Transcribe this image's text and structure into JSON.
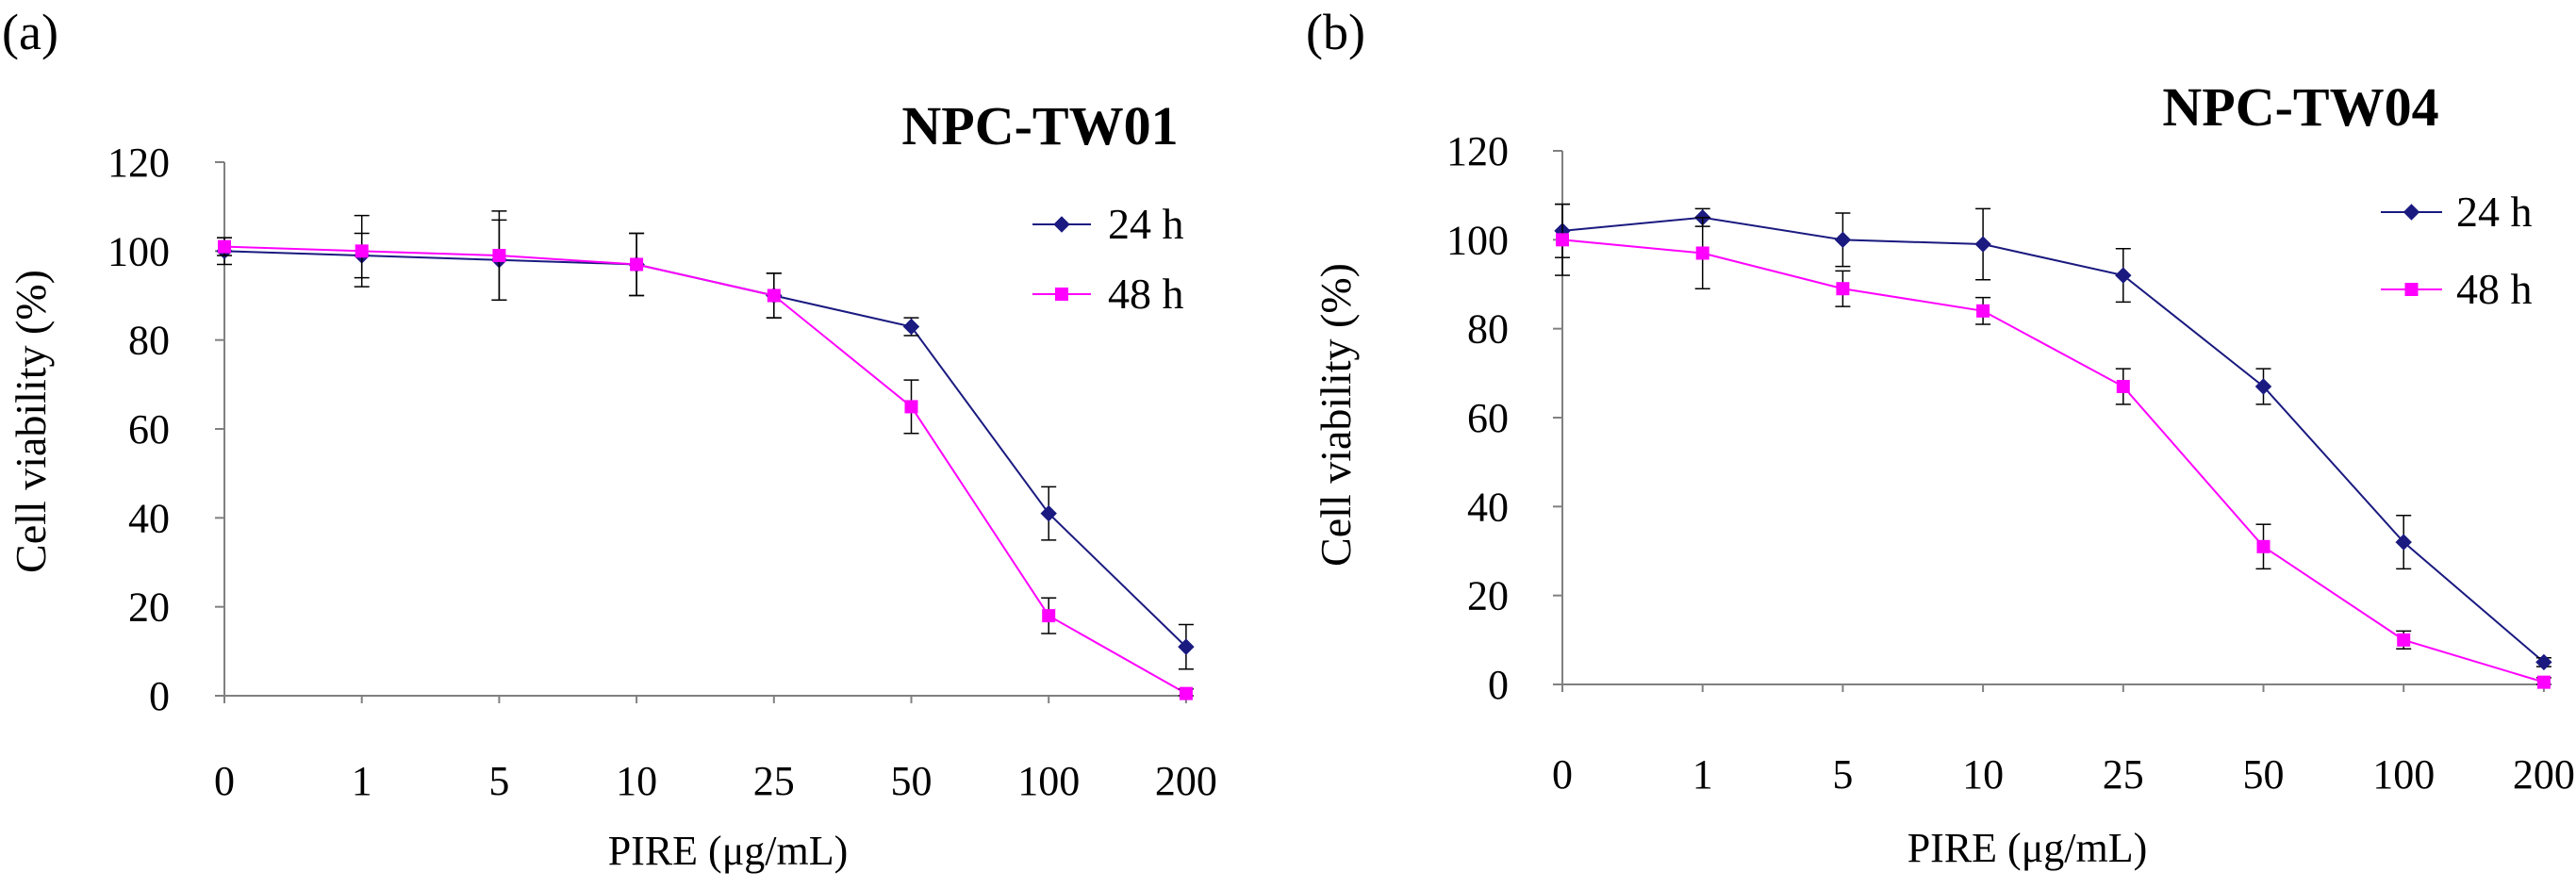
{
  "colors": {
    "series_24h": "#1a1a80",
    "series_48h": "#ff00ff",
    "axis": "#808080",
    "error_bar": "#000000"
  },
  "chart_data": [
    {
      "panel_label": "(a)",
      "type": "line",
      "title": "NPC-TW01",
      "xlabel": "PIRE (μg/mL)",
      "ylabel": "Cell viability (%)",
      "categories": [
        "0",
        "1",
        "5",
        "10",
        "25",
        "50",
        "100",
        "200"
      ],
      "ylim": [
        0,
        120
      ],
      "yticks": [
        0,
        20,
        40,
        60,
        80,
        100,
        120
      ],
      "grid": false,
      "legend_position": "top-right",
      "series": [
        {
          "name": "24 h",
          "marker": "diamond",
          "values": [
            100,
            99,
            98,
            97,
            90,
            83,
            41,
            11
          ],
          "errors": [
            3,
            5,
            9,
            7,
            5,
            2,
            6,
            5
          ]
        },
        {
          "name": "48 h",
          "marker": "square",
          "values": [
            101,
            100,
            99,
            97,
            90,
            65,
            18,
            0.5
          ],
          "errors": [
            2,
            8,
            10,
            7,
            5,
            6,
            4,
            1
          ]
        }
      ]
    },
    {
      "panel_label": "(b)",
      "type": "line",
      "title": "NPC-TW04",
      "xlabel": "PIRE (μg/mL)",
      "ylabel": "Cell viability (%)",
      "categories": [
        "0",
        "1",
        "5",
        "10",
        "25",
        "50",
        "100",
        "200"
      ],
      "ylim": [
        0,
        120
      ],
      "yticks": [
        0,
        20,
        40,
        60,
        80,
        100,
        120
      ],
      "grid": false,
      "legend_position": "top-right",
      "series": [
        {
          "name": "24 h",
          "marker": "diamond",
          "values": [
            102,
            105,
            100,
            99,
            92,
            67,
            32,
            5
          ],
          "errors": [
            6,
            2,
            6,
            8,
            6,
            4,
            6,
            1
          ]
        },
        {
          "name": "48 h",
          "marker": "square",
          "values": [
            100,
            97,
            89,
            84,
            67,
            31,
            10,
            0.5
          ],
          "errors": [
            8,
            8,
            4,
            3,
            4,
            5,
            2,
            1
          ]
        }
      ]
    }
  ]
}
